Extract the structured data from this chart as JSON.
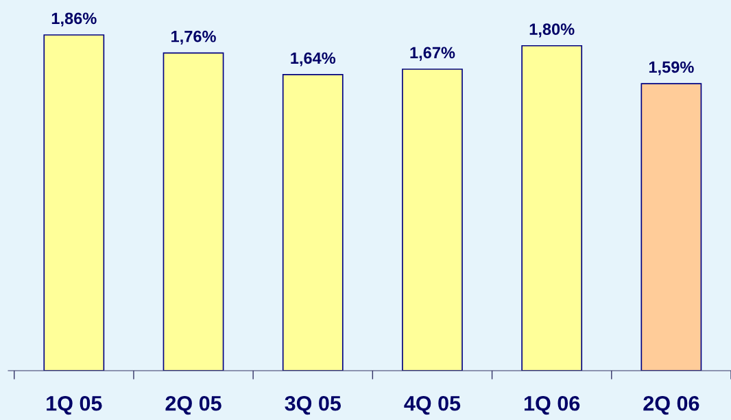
{
  "chart_data": {
    "type": "bar",
    "categories": [
      "1Q 05",
      "2Q 05",
      "3Q 05",
      "4Q 05",
      "1Q 06",
      "2Q 06"
    ],
    "values": [
      1.86,
      1.76,
      1.64,
      1.67,
      1.8,
      1.59
    ],
    "value_labels": [
      "1,86%",
      "1,76%",
      "1,64%",
      "1,67%",
      "1,80%",
      "1,59%"
    ],
    "colors": [
      "#ffff99",
      "#ffff99",
      "#ffff99",
      "#ffff99",
      "#ffff99",
      "#ffcc99"
    ]
  }
}
